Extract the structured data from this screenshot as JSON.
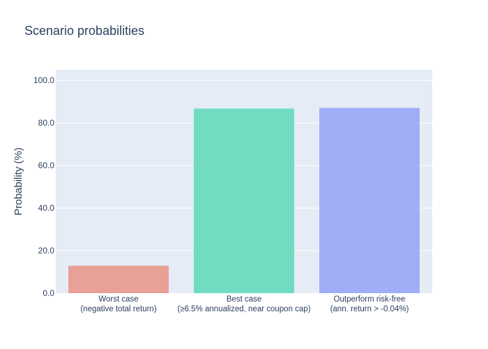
{
  "chart_data": {
    "type": "bar",
    "title": "Scenario probabilities",
    "ylabel": "Probability (%)",
    "xlabel": "",
    "ylim": [
      0,
      105
    ],
    "yticks": [
      "0.0",
      "20.0",
      "40.0",
      "60.0",
      "80.0",
      "100.0"
    ],
    "grid": true,
    "categories": [
      {
        "line1": "Worst case",
        "line2": "(negative total return)"
      },
      {
        "line1": "Best case",
        "line2": "(≥6.5% annualized, near coupon cap)"
      },
      {
        "line1": "Outperform risk-free",
        "line2": "(ann. return > -0.04%)"
      }
    ],
    "values": [
      12.9,
      86.8,
      87.1
    ],
    "colors": [
      "#e9a097",
      "#72dcc3",
      "#a2adf8"
    ],
    "plot_bgcolor": "#e5ecf6"
  }
}
